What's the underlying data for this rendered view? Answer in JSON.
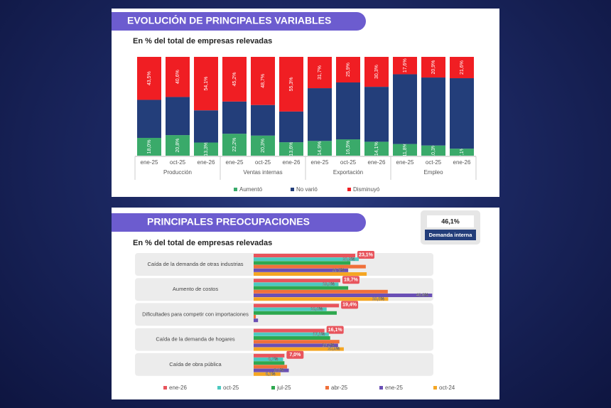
{
  "chart_data": [
    {
      "type": "bar",
      "stacked": true,
      "title": "EVOLUCIÓN DE PRINCIPALES VARIABLES",
      "subtitle": "En % del total de empresas relevadas",
      "categories": [
        "ene-25",
        "oct-25",
        "ene-26",
        "ene-25",
        "oct-25",
        "ene-26",
        "ene-25",
        "oct-25",
        "ene-26",
        "ene-25",
        "oct-25",
        "ene-26"
      ],
      "category_groups": [
        "Producción",
        "Ventas internas",
        "Exportación",
        "Empleo"
      ],
      "legend": "bottom",
      "series": [
        {
          "name": "Aumentó",
          "color": "#3aaa6a",
          "values": [
            18.0,
            20.8,
            13.3,
            22.2,
            20.3,
            13.6,
            14.9,
            16.5,
            14.1,
            11.8,
            10.3,
            7.1
          ],
          "value_labels": [
            "18,0%",
            "20,8%",
            "13,3%",
            "22,2%",
            "20,3%",
            "13,6%",
            "14,9%",
            "16,5%",
            "14,1%",
            "11,8%",
            "10,3%",
            "7,1%"
          ]
        },
        {
          "name": "No varió",
          "color": "#233e7a",
          "values": [
            38.5,
            38.6,
            32.6,
            32.6,
            31.0,
            31.1,
            53.4,
            57.6,
            55.6,
            70.6,
            68.8,
            71.3
          ]
        },
        {
          "name": "Disminuyó",
          "color": "#f01e23",
          "values": [
            43.5,
            40.6,
            54.1,
            45.2,
            48.7,
            55.3,
            31.7,
            25.9,
            30.3,
            17.6,
            20.9,
            21.6
          ],
          "value_labels": [
            "43,5%",
            "40,6%",
            "54,1%",
            "45,2%",
            "48,7%",
            "55,3%",
            "31,7%",
            "25,9%",
            "30,3%",
            "17,6%",
            "20,9%",
            "21,6%"
          ]
        }
      ]
    },
    {
      "type": "barh",
      "title": "PRINCIPALES PREOCUPACIONES",
      "subtitle": "En % del total de empresas relevadas",
      "annotation": {
        "label": "46,1%",
        "text": "Demanda interna"
      },
      "categories": [
        "Caída de la demanda de otras industrias",
        "Aumento de costos",
        "Dificultades para competir con importaciones",
        "Caída de la demanda de hogares",
        "Caída de obra pública"
      ],
      "legend": "bottom",
      "series": [
        {
          "name": "ene-26",
          "color": "#e8545c",
          "values": [
            23.1,
            19.7,
            19.4,
            16.1,
            7.0
          ],
          "value_labels": [
            "23,1%",
            "19,7%",
            "19,4%",
            "16,1%",
            "7,0%"
          ]
        },
        {
          "name": "oct-25",
          "color": "#4cc9c0",
          "values": [
            23.9,
            19.3,
            16.6,
            17.1,
            6.7
          ],
          "value_labels": [
            "23,9%",
            "19,3%",
            "16,6%",
            "17,1%",
            "6,7%"
          ]
        },
        {
          "name": "jul-25",
          "color": "#2ea84f",
          "values": [
            22.0,
            21.5,
            18.9,
            17.4,
            7.0
          ]
        },
        {
          "name": "abr-25",
          "color": "#f0703a",
          "values": [
            25.5,
            30.5,
            0.5,
            19.5,
            7.6
          ]
        },
        {
          "name": "ene-25",
          "color": "#6a4fb5",
          "values": [
            21.5,
            40.6,
            1.0,
            19.2,
            8.0
          ],
          "value_labels": [
            "21,5%",
            "40,6%",
            null,
            "19,2%",
            "8,0%"
          ]
        },
        {
          "name": "oct-24",
          "color": "#f5a623",
          "values": [
            25.7,
            30.6,
            null,
            20.5,
            6.1
          ],
          "value_labels": [
            null,
            "30,6%",
            null,
            "20,5%",
            "6,1%"
          ]
        }
      ]
    }
  ]
}
